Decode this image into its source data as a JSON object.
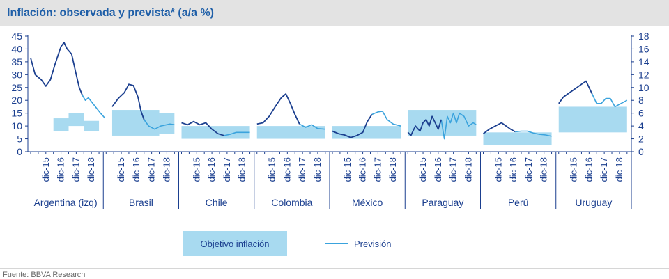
{
  "title": "Inflación: observada y prevista* (a/a %)",
  "source": "Fuente: BBVA Research",
  "colors": {
    "observed": "#1b3f8f",
    "forecast": "#3aa3dd",
    "target": "#a8daf0",
    "axis": "#1b3f8f",
    "text": "#1b3f8f"
  },
  "chart_data": {
    "type": "line",
    "y_left": {
      "ticks": [
        "0",
        "5",
        "10",
        "15",
        "20",
        "25",
        "30",
        "35",
        "40",
        "45"
      ],
      "ylim": [
        0,
        45
      ]
    },
    "y_right": {
      "ticks": [
        "0",
        "2",
        "4",
        "6",
        "8",
        "10",
        "12",
        "14",
        "16",
        "18"
      ],
      "ylim": [
        0,
        18
      ]
    },
    "x_tick_labels": [
      "dic-15",
      "dic-16",
      "dic-17",
      "dic-18"
    ],
    "legend": [
      {
        "key": "target",
        "label": "Objetivo inflación"
      },
      {
        "key": "forecast",
        "label": "Previsión"
      }
    ],
    "countries": [
      {
        "name": "Argentina (izq)",
        "axis": "left",
        "targets": [
          {
            "from": 1.5,
            "to": 2.5,
            "lo": 8,
            "hi": 13
          },
          {
            "from": 2.5,
            "to": 3.5,
            "lo": 10,
            "hi": 15
          },
          {
            "from": 3.5,
            "to": 4.5,
            "lo": 8,
            "hi": 12
          }
        ],
        "observed": [
          [
            0,
            36.5
          ],
          [
            0.3,
            30
          ],
          [
            0.7,
            28
          ],
          [
            1.0,
            25.5
          ],
          [
            1.3,
            28
          ],
          [
            1.6,
            34
          ],
          [
            2.0,
            41
          ],
          [
            2.2,
            42.5
          ],
          [
            2.4,
            40
          ],
          [
            2.7,
            38
          ],
          [
            3.0,
            30
          ],
          [
            3.2,
            25
          ],
          [
            3.4,
            22
          ]
        ],
        "forecast": [
          [
            3.4,
            22
          ],
          [
            3.6,
            20
          ],
          [
            3.8,
            21
          ],
          [
            4.2,
            18
          ],
          [
            4.6,
            15
          ],
          [
            4.9,
            13
          ]
        ]
      },
      {
        "name": "Brasil",
        "axis": "right",
        "targets": [
          {
            "from": 0.4,
            "to": 2.5,
            "lo": 2.5,
            "hi": 6.5
          },
          {
            "from": 2.5,
            "to": 3.5,
            "lo": 2.5,
            "hi": 6.5
          },
          {
            "from": 3.5,
            "to": 4.5,
            "lo": 2.75,
            "hi": 6
          }
        ],
        "observed": [
          [
            0.4,
            7
          ],
          [
            0.8,
            8.3
          ],
          [
            1.2,
            9.2
          ],
          [
            1.5,
            10.5
          ],
          [
            1.8,
            10.3
          ],
          [
            2.1,
            8.5
          ],
          [
            2.3,
            6.3
          ],
          [
            2.5,
            5
          ]
        ],
        "forecast": [
          [
            2.5,
            5
          ],
          [
            2.8,
            4
          ],
          [
            3.2,
            3.5
          ],
          [
            3.6,
            4
          ],
          [
            4.2,
            4.3
          ],
          [
            4.5,
            4.2
          ]
        ]
      },
      {
        "name": "Chile",
        "axis": "right",
        "targets": [
          {
            "from": 0.0,
            "to": 4.5,
            "lo": 2,
            "hi": 4
          }
        ],
        "observed": [
          [
            0,
            4.5
          ],
          [
            0.4,
            4.2
          ],
          [
            0.8,
            4.7
          ],
          [
            1.2,
            4.2
          ],
          [
            1.6,
            4.5
          ],
          [
            2.0,
            3.5
          ],
          [
            2.4,
            2.8
          ],
          [
            2.8,
            2.5
          ]
        ],
        "forecast": [
          [
            2.8,
            2.5
          ],
          [
            3.2,
            2.7
          ],
          [
            3.6,
            3
          ],
          [
            4.0,
            3
          ],
          [
            4.5,
            3
          ]
        ]
      },
      {
        "name": "Colombia",
        "axis": "right",
        "targets": [
          {
            "from": 0.0,
            "to": 4.5,
            "lo": 2,
            "hi": 4
          }
        ],
        "observed": [
          [
            0,
            4.3
          ],
          [
            0.4,
            4.5
          ],
          [
            0.8,
            5.5
          ],
          [
            1.2,
            7
          ],
          [
            1.6,
            8.4
          ],
          [
            1.9,
            9
          ],
          [
            2.2,
            7.5
          ],
          [
            2.5,
            5.8
          ],
          [
            2.8,
            4.3
          ]
        ],
        "forecast": [
          [
            2.8,
            4.3
          ],
          [
            3.2,
            3.8
          ],
          [
            3.6,
            4.2
          ],
          [
            4.0,
            3.6
          ],
          [
            4.5,
            3.5
          ]
        ]
      },
      {
        "name": "México",
        "axis": "right",
        "targets": [
          {
            "from": 0.0,
            "to": 4.5,
            "lo": 2,
            "hi": 4
          }
        ],
        "observed": [
          [
            0,
            3.2
          ],
          [
            0.4,
            2.8
          ],
          [
            0.8,
            2.6
          ],
          [
            1.2,
            2.2
          ],
          [
            1.6,
            2.5
          ],
          [
            2.0,
            3
          ],
          [
            2.3,
            4.7
          ],
          [
            2.6,
            5.8
          ]
        ],
        "forecast": [
          [
            2.6,
            5.8
          ],
          [
            3.0,
            6.2
          ],
          [
            3.3,
            6.3
          ],
          [
            3.6,
            5
          ],
          [
            4.0,
            4.3
          ],
          [
            4.5,
            4
          ]
        ]
      },
      {
        "name": "Paraguay",
        "axis": "right",
        "targets": [
          {
            "from": 0.0,
            "to": 4.5,
            "lo": 2.5,
            "hi": 6.5
          }
        ],
        "observed": [
          [
            0,
            3
          ],
          [
            0.2,
            2.5
          ],
          [
            0.5,
            4
          ],
          [
            0.8,
            3.2
          ],
          [
            1.0,
            4.5
          ],
          [
            1.2,
            5
          ],
          [
            1.4,
            4
          ],
          [
            1.6,
            5.5
          ],
          [
            1.8,
            4.5
          ],
          [
            2.0,
            3.5
          ],
          [
            2.2,
            5
          ]
        ],
        "forecast": [
          [
            2.2,
            5
          ],
          [
            2.4,
            2
          ],
          [
            2.6,
            5.5
          ],
          [
            2.8,
            4.5
          ],
          [
            3.0,
            6
          ],
          [
            3.2,
            4.5
          ],
          [
            3.4,
            6
          ],
          [
            3.7,
            5.5
          ],
          [
            4.0,
            4
          ],
          [
            4.3,
            4.5
          ],
          [
            4.5,
            4.2
          ]
        ]
      },
      {
        "name": "Perú",
        "axis": "right",
        "targets": [
          {
            "from": 0.0,
            "to": 4.5,
            "lo": 1,
            "hi": 3
          }
        ],
        "observed": [
          [
            0,
            2.8
          ],
          [
            0.4,
            3.5
          ],
          [
            0.8,
            4
          ],
          [
            1.2,
            4.5
          ],
          [
            1.5,
            4
          ],
          [
            1.8,
            3.5
          ],
          [
            2.1,
            3.1
          ]
        ],
        "forecast": [
          [
            2.1,
            3.1
          ],
          [
            2.5,
            3.2
          ],
          [
            2.9,
            3.2
          ],
          [
            3.3,
            2.9
          ],
          [
            3.7,
            2.7
          ],
          [
            4.1,
            2.6
          ],
          [
            4.5,
            2.4
          ]
        ]
      },
      {
        "name": "Uruguay",
        "axis": "right",
        "targets": [
          {
            "from": 0.0,
            "to": 1.0,
            "lo": 3,
            "hi": 7
          },
          {
            "from": 1.0,
            "to": 4.5,
            "lo": 3,
            "hi": 7
          }
        ],
        "observed": [
          [
            0,
            7.5
          ],
          [
            0.3,
            8.5
          ],
          [
            0.6,
            9
          ],
          [
            0.9,
            9.5
          ],
          [
            1.2,
            10
          ],
          [
            1.5,
            10.5
          ],
          [
            1.8,
            11
          ],
          [
            2.0,
            10
          ],
          [
            2.2,
            9
          ]
        ],
        "forecast": [
          [
            2.2,
            9
          ],
          [
            2.5,
            7.5
          ],
          [
            2.8,
            7.5
          ],
          [
            3.1,
            8.3
          ],
          [
            3.4,
            8.3
          ],
          [
            3.7,
            7
          ],
          [
            4.1,
            7.5
          ],
          [
            4.5,
            8
          ]
        ]
      }
    ]
  }
}
